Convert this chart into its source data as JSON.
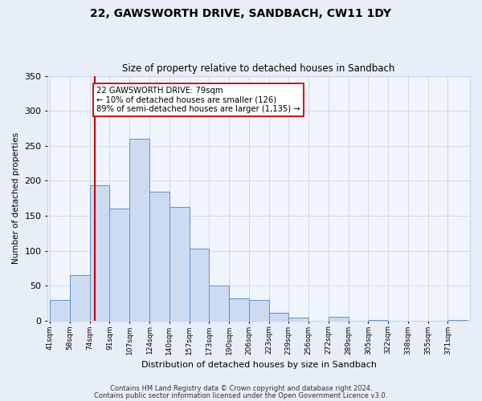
{
  "title": "22, GAWSWORTH DRIVE, SANDBACH, CW11 1DY",
  "subtitle": "Size of property relative to detached houses in Sandbach",
  "xlabel": "Distribution of detached houses by size in Sandbach",
  "ylabel": "Number of detached properties",
  "bin_labels": [
    "41sqm",
    "58sqm",
    "74sqm",
    "91sqm",
    "107sqm",
    "124sqm",
    "140sqm",
    "157sqm",
    "173sqm",
    "190sqm",
    "206sqm",
    "223sqm",
    "239sqm",
    "256sqm",
    "272sqm",
    "289sqm",
    "305sqm",
    "322sqm",
    "338sqm",
    "355sqm",
    "371sqm"
  ],
  "bar_heights": [
    30,
    65,
    193,
    160,
    260,
    184,
    163,
    103,
    50,
    32,
    30,
    11,
    4,
    0,
    5,
    0,
    1,
    0,
    0,
    0,
    1
  ],
  "bar_color": "#ccdaf2",
  "bar_edge_color": "#6090c8",
  "vline_color": "#cc0000",
  "annotation_line1": "22 GAWSWORTH DRIVE: 79sqm",
  "annotation_line2": "← 10% of detached houses are smaller (126)",
  "annotation_line3": "89% of semi-detached houses are larger (1,135) →",
  "annotation_box_color": "#ffffff",
  "annotation_box_edge": "#cc0000",
  "ylim": [
    0,
    350
  ],
  "yticks": [
    0,
    50,
    100,
    150,
    200,
    250,
    300,
    350
  ],
  "footer1": "Contains HM Land Registry data © Crown copyright and database right 2024.",
  "footer2": "Contains public sector information licensed under the Open Government Licence v3.0.",
  "bg_color": "#e8eef8",
  "plot_bg_color": "#f0f4fc",
  "grid_color": "#c8d4e8",
  "bin_width": 17,
  "vline_x": 79
}
